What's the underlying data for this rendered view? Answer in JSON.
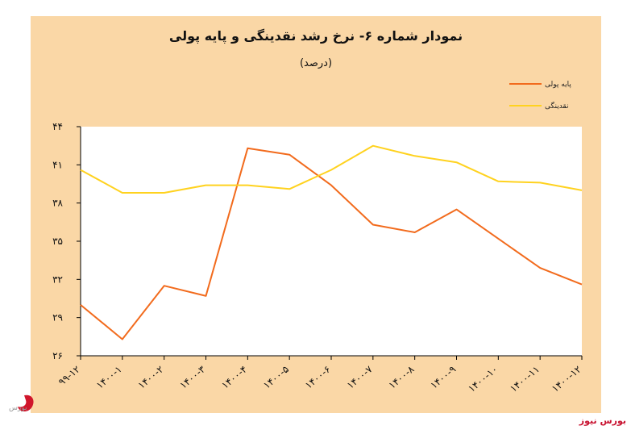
{
  "chart_data": {
    "type": "line",
    "title": "نمودار شماره ۶- نرخ رشد نقدینگی و پایه پولی",
    "subtitle": "(درصد)",
    "categories": [
      "۹۹-۱۲",
      "۱۴۰۰-۱",
      "۱۴۰۰-۲",
      "۱۴۰۰-۳",
      "۱۴۰۰-۴",
      "۱۴۰۰-۵",
      "۱۴۰۰-۶",
      "۱۴۰۰-۷",
      "۱۴۰۰-۸",
      "۱۴۰۰-۹",
      "۱۴۰۰-۱۰",
      "۱۴۰۰-۱۱",
      "۱۴۰۰-۱۲"
    ],
    "y_ticks": [
      26,
      29,
      32,
      35,
      38,
      41,
      44
    ],
    "y_tick_labels": [
      "۲۶",
      "۲۹",
      "۳۲",
      "۳۵",
      "۳۸",
      "۴۱",
      "۴۴"
    ],
    "ylim": [
      26,
      44
    ],
    "legend_position": "top-right",
    "series": [
      {
        "name": "پایه پولی",
        "color": "#f26b1d",
        "values": [
          30.0,
          27.3,
          31.5,
          30.7,
          42.3,
          41.8,
          39.4,
          36.3,
          35.7,
          37.5,
          35.2,
          32.9,
          31.6
        ]
      },
      {
        "name": "نقدینگی",
        "color": "#ffd21f",
        "values": [
          40.6,
          38.8,
          38.8,
          39.4,
          39.4,
          39.1,
          40.6,
          42.5,
          41.7,
          41.2,
          39.7,
          39.6,
          39.0
        ]
      }
    ]
  },
  "branding": {
    "logo_text": "بورس",
    "site_name": "بورس نیوز"
  }
}
